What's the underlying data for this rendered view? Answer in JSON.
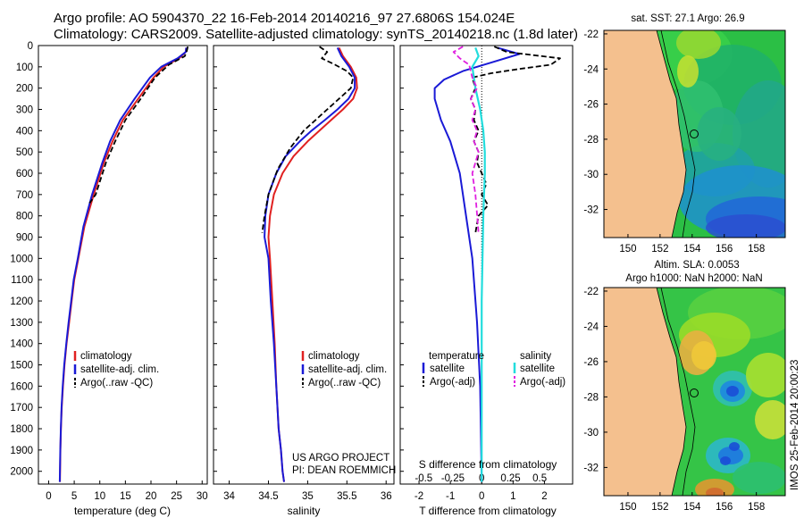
{
  "header": {
    "line1": "Argo profile: AO 5904370_22 16-Feb-2014 20140216_97 27.6806S 154.024E",
    "line2": "Climatology: CARS2009. Satellite-adjusted climatology: synTS_20140218.nc (1.8d later)"
  },
  "colors": {
    "climatology": "#e02020",
    "satellite": "#1a1ad6",
    "argo": "#000000",
    "salinity_satellite": "#22dddd",
    "salinity_argo": "#e020e0",
    "land": "#f4c08e"
  },
  "chart_data": [
    {
      "type": "line",
      "id": "temperature",
      "xlabel": "temperature (deg C)",
      "ylabel": "",
      "xlim": [
        -2,
        31
      ],
      "ylim": [
        2060,
        0
      ],
      "xticks": [
        0,
        5,
        10,
        15,
        20,
        25,
        30
      ],
      "yticks": [
        0,
        100,
        200,
        300,
        400,
        500,
        600,
        700,
        800,
        900,
        1000,
        1100,
        1200,
        1300,
        1400,
        1500,
        1600,
        1700,
        1800,
        1900,
        2000
      ],
      "legend": [
        "climatology",
        "satellite-adj. clim.",
        "Argo(..raw -QC)"
      ],
      "series": [
        {
          "name": "climatology",
          "x": [
            26.9,
            26.8,
            25.5,
            22.5,
            20.5,
            17.5,
            14.5,
            12.5,
            10.8,
            8.8,
            7.0,
            5.8,
            5.0,
            4.5,
            4.0,
            3.5,
            3.1,
            2.8,
            2.55,
            2.4,
            2.3,
            2.2
          ],
          "y": [
            10,
            30,
            60,
            100,
            150,
            250,
            350,
            450,
            550,
            700,
            850,
            1000,
            1100,
            1200,
            1300,
            1400,
            1500,
            1600,
            1700,
            1800,
            1900,
            2050
          ]
        },
        {
          "name": "satellite-adj. clim.",
          "x": [
            26.9,
            26.8,
            25.2,
            22.0,
            19.8,
            16.8,
            14.0,
            12.0,
            10.5,
            8.5,
            6.8,
            5.7,
            4.9,
            4.4,
            3.9,
            3.45,
            3.05,
            2.75,
            2.52,
            2.38,
            2.28,
            2.18
          ],
          "y": [
            10,
            30,
            60,
            100,
            150,
            250,
            350,
            450,
            550,
            700,
            850,
            1000,
            1100,
            1200,
            1300,
            1400,
            1500,
            1600,
            1700,
            1800,
            1900,
            2050
          ]
        },
        {
          "name": "Argo(..raw -QC)",
          "x": [
            27.2,
            27.0,
            26.6,
            23.5,
            20.8,
            18.0,
            15.0,
            13.0,
            11.2,
            9.2,
            8.0
          ],
          "y": [
            5,
            25,
            50,
            90,
            150,
            250,
            350,
            450,
            550,
            700,
            740
          ]
        }
      ]
    },
    {
      "type": "line",
      "id": "salinity",
      "xlabel": "salinity",
      "xlim": [
        33.8,
        36.1
      ],
      "ylim": [
        2060,
        0
      ],
      "xticks": [
        34,
        34.5,
        35,
        35.5,
        36
      ],
      "legend": [
        "climatology",
        "satellite-adj. clim.",
        "Argo(..raw -QC)"
      ],
      "annotation": [
        "US ARGO PROJECT",
        "PI: DEAN ROEMMICH"
      ],
      "series": [
        {
          "name": "climatology",
          "x": [
            35.4,
            35.45,
            35.55,
            35.62,
            35.63,
            35.58,
            35.45,
            35.3,
            35.15,
            35.0,
            34.82,
            34.68,
            34.57,
            34.52,
            34.5,
            34.52,
            34.55,
            34.58,
            34.6,
            34.63,
            34.66,
            34.68,
            34.7
          ],
          "y": [
            10,
            50,
            100,
            150,
            200,
            250,
            300,
            350,
            400,
            450,
            520,
            600,
            700,
            800,
            900,
            1000,
            1200,
            1400,
            1600,
            1800,
            1900,
            2000,
            2050
          ]
        },
        {
          "name": "satellite-adj. clim.",
          "x": [
            35.38,
            35.43,
            35.53,
            35.6,
            35.6,
            35.52,
            35.38,
            35.22,
            35.05,
            34.9,
            34.72,
            34.6,
            34.5,
            34.46,
            34.45,
            34.5,
            34.53,
            34.57,
            34.6,
            34.63,
            34.66,
            34.68,
            34.7
          ],
          "y": [
            10,
            50,
            100,
            150,
            200,
            250,
            300,
            350,
            400,
            450,
            520,
            600,
            700,
            800,
            900,
            1000,
            1200,
            1400,
            1600,
            1800,
            1900,
            2000,
            2050
          ]
        },
        {
          "name": "Argo(..raw -QC)",
          "x": [
            35.15,
            35.25,
            35.18,
            35.35,
            35.5,
            35.58,
            35.55,
            35.4,
            35.25,
            35.1,
            34.95,
            34.78,
            34.62,
            34.5,
            34.45,
            34.42
          ],
          "y": [
            5,
            30,
            60,
            90,
            120,
            150,
            200,
            250,
            300,
            350,
            400,
            480,
            580,
            700,
            800,
            880
          ]
        }
      ]
    },
    {
      "type": "line",
      "id": "difference",
      "xlabel": "T difference from climatology",
      "xlabel_top": "S difference from climatology",
      "xlim": [
        -2.6,
        2.9
      ],
      "ylim": [
        2060,
        0
      ],
      "xticks": [
        -2,
        -1,
        0,
        1,
        2
      ],
      "s_ticks": [
        "-0.5",
        "-0.25",
        "0",
        "0.25",
        "0.5"
      ],
      "s_tick_positions_T": [
        -1.85,
        -0.92,
        0,
        0.92,
        1.85
      ],
      "legend_headers": [
        "temperature",
        "salinity"
      ],
      "legend": [
        "satellite",
        "Argo(-adj)",
        "satellite",
        "Argo(-adj)"
      ],
      "series": [
        {
          "name": "T satellite",
          "x": [
            0.5,
            1.2,
            0.3,
            -0.6,
            -1.2,
            -1.5,
            -1.5,
            -1.3,
            -1.0,
            -0.7,
            -0.5,
            -0.3,
            -0.15,
            -0.05,
            0
          ],
          "y": [
            10,
            40,
            80,
            120,
            160,
            200,
            250,
            350,
            450,
            600,
            800,
            1000,
            1300,
            1600,
            2050
          ]
        },
        {
          "name": "T Argo(-adj)",
          "x": [
            0.4,
            0.8,
            2.5,
            2.2,
            1.2,
            0.3,
            -0.3,
            -0.2,
            -0.35,
            -0.2,
            -0.25,
            -0.1,
            -0.25,
            -0.1,
            -0.15,
            0.15,
            0.0,
            0.2,
            -0.1,
            -0.2
          ],
          "y": [
            5,
            30,
            60,
            90,
            110,
            130,
            150,
            200,
            250,
            300,
            350,
            400,
            450,
            500,
            550,
            650,
            700,
            750,
            800,
            880
          ]
        },
        {
          "name": "S satellite",
          "x": [
            -0.2,
            -0.1,
            -0.3,
            -0.2,
            -0.05,
            0.05,
            0.1,
            0.1,
            0.05,
            0.0,
            0.0
          ],
          "y": [
            10,
            50,
            100,
            200,
            300,
            400,
            500,
            600,
            800,
            1200,
            2050
          ]
        },
        {
          "name": "S Argo(-adj)",
          "x": [
            -0.6,
            -0.9,
            -0.7,
            -0.4,
            -0.3,
            -0.15,
            -0.35,
            -0.2,
            -0.3,
            -0.15,
            -0.25,
            -0.1,
            -0.3,
            -0.2,
            -0.1
          ],
          "y": [
            5,
            30,
            60,
            90,
            150,
            200,
            250,
            300,
            350,
            400,
            450,
            500,
            600,
            700,
            880
          ]
        }
      ]
    },
    {
      "type": "heatmap",
      "id": "sst-map",
      "title": "sat. SST: 27.1 Argo: 26.9",
      "xlim": [
        148.5,
        159.8
      ],
      "ylim": [
        -33.6,
        -21.8
      ],
      "xticks": [
        150,
        152,
        154,
        156,
        158
      ],
      "yticks": [
        -22,
        -24,
        -26,
        -28,
        -30,
        -32
      ],
      "argo_position": [
        154.024,
        -27.68
      ]
    },
    {
      "type": "heatmap",
      "id": "sla-map",
      "title": "Altim. SLA: 0.0053",
      "subtitle": "Argo h1000: NaN h2000: NaN",
      "xlim": [
        148.5,
        159.8
      ],
      "ylim": [
        -33.6,
        -21.8
      ],
      "xticks": [
        150,
        152,
        154,
        156,
        158
      ],
      "yticks": [
        -22,
        -24,
        -26,
        -28,
        -30,
        -32
      ],
      "argo_position": [
        154.024,
        -27.68
      ]
    }
  ],
  "credit": "IMOS 25-Feb-2014 20:00:23"
}
